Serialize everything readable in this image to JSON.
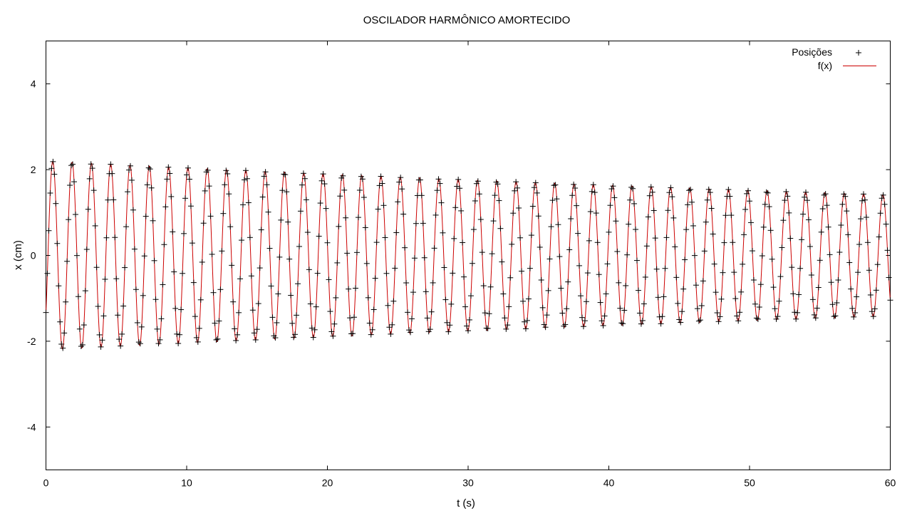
{
  "chart_data": {
    "type": "scatter",
    "title": "OSCILADOR HARMÔNICO AMORTECIDO",
    "xlabel": "t (s)",
    "ylabel": "x (cm)",
    "xlim": [
      0,
      60
    ],
    "ylim": [
      -5,
      5
    ],
    "xticks": [
      0,
      10,
      20,
      30,
      40,
      50,
      60
    ],
    "yticks": [
      -4,
      -2,
      0,
      2,
      4
    ],
    "grid": false,
    "legend_position": "top-right",
    "series": [
      {
        "name": "Posições",
        "marker": "plus",
        "color": "#000000",
        "sample_interval_s": 0.1,
        "t_range": [
          0,
          60
        ]
      },
      {
        "name": "f(x)",
        "style": "line",
        "color": "#cc0000",
        "model": "x(t) = A·exp(-b·t)·sin(ω·t + φ)",
        "params": {
          "A": 2.2,
          "b": 0.0074,
          "omega": 4.58,
          "phi": -0.65
        }
      }
    ]
  }
}
